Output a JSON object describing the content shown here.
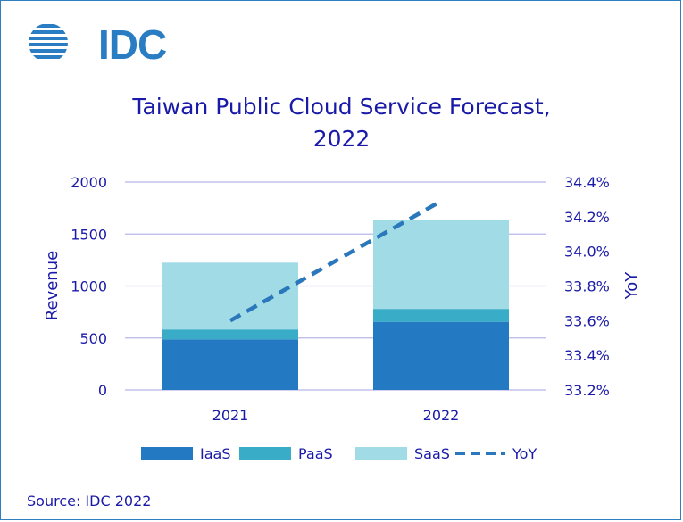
{
  "logo": {
    "text": "IDC"
  },
  "title": "Taiwan Public Cloud Service Forecast,",
  "title_line2": "2022",
  "source": "Source: IDC 2022",
  "colors": {
    "iaas": "#2479c3",
    "paas": "#39acc8",
    "saas": "#a1dbe6",
    "yoy": "#2a78bb",
    "text": "#1a1aa8",
    "grid": "#b7b7e8"
  },
  "chart_data": {
    "type": "bar",
    "stacked": true,
    "categories": [
      "2021",
      "2022"
    ],
    "series": [
      {
        "name": "IaaS",
        "values": [
          487,
          655
        ]
      },
      {
        "name": "PaaS",
        "values": [
          95,
          125
        ]
      },
      {
        "name": "SaaS",
        "values": [
          643,
          855
        ]
      }
    ],
    "line_series": {
      "name": "YoY",
      "axis": "right",
      "values": [
        33.6,
        34.29
      ],
      "style": "dashed"
    },
    "ylabel": "Revenue",
    "y2label": "YoY",
    "ylim": [
      0,
      2000
    ],
    "y2lim": [
      33.2,
      34.4
    ],
    "yticks": [
      "0",
      "500",
      "1000",
      "1500",
      "2000"
    ],
    "y2ticks": [
      "33.2%",
      "33.4%",
      "33.6%",
      "33.8%",
      "34.0%",
      "34.2%",
      "34.4%"
    ],
    "grid": true,
    "legend": [
      "IaaS",
      "PaaS",
      "SaaS",
      "YoY"
    ],
    "legend_position": "bottom"
  }
}
